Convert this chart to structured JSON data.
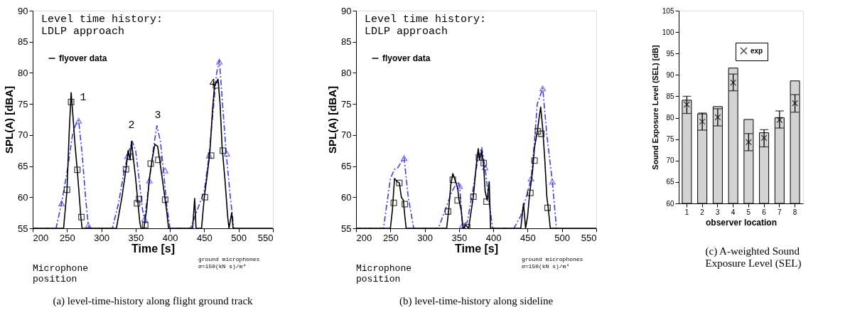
{
  "chart_data": [
    {
      "type": "line",
      "xlabel": "Time [s]",
      "ylabel": "SPL(A) [dBA]",
      "xlim": [
        200,
        550
      ],
      "xticks": [
        200,
        250,
        300,
        350,
        400,
        450,
        500,
        550
      ],
      "ylim": [
        55,
        90
      ],
      "yticks": [
        55,
        60,
        65,
        70,
        75,
        80,
        85,
        90
      ],
      "grid": false,
      "legend": "top left",
      "annotations": [
        "Level time history:\nLDLP approach",
        "Microphone\nposition",
        "ground microphones\nσ=150(kN s)/m⁴",
        "(a) level-time-history along flight ground track",
        "1",
        "2",
        "3",
        "4"
      ],
      "series": [
        {
          "color": "#3c3cff",
          "line_style": "dashed",
          "marker": "none",
          "x": [
            200,
            234,
            242,
            250,
            258,
            262,
            267,
            272,
            277,
            281,
            283,
            316,
            325,
            333,
            339,
            345,
            350,
            355,
            360,
            363,
            370,
            376,
            381,
            386,
            390,
            395,
            400,
            430,
            440,
            450,
            457,
            463,
            468,
            472,
            476,
            482,
            488,
            493
          ],
          "values": [
            55,
            55,
            59,
            64,
            70,
            71.5,
            72.3,
            67,
            60,
            55.5,
            55,
            55,
            59,
            64,
            67,
            69,
            67.5,
            63,
            58,
            56.5,
            62.7,
            68,
            71.5,
            69,
            65,
            59,
            55,
            55,
            58,
            61,
            66.7,
            74,
            80,
            82,
            76,
            67,
            60,
            55
          ]
        },
        {
          "type": "scatter",
          "color": "#3c3cff",
          "marker": "triangle",
          "x": [
            242,
            267,
            281,
            338,
            363,
            370,
            393,
            457,
            472,
            483
          ],
          "values": [
            59,
            72.3,
            55.5,
            66.6,
            56.5,
            62.7,
            64.3,
            66.7,
            81.8,
            67
          ]
        },
        {
          "name": "flyover data",
          "color": "#000000",
          "line_style": "solid",
          "marker": "none",
          "x": [
            200,
            245,
            250,
            253,
            256,
            258,
            262,
            265,
            268,
            270,
            272,
            322,
            330,
            336,
            339,
            342,
            344,
            347,
            350,
            353,
            356,
            358,
            362,
            366,
            370,
            374,
            378,
            382,
            385,
            390,
            395,
            398,
            433,
            436,
            438,
            446,
            450,
            453,
            458,
            462,
            465,
            468,
            470,
            473,
            476,
            480,
            484,
            486,
            490,
            492,
            550
          ],
          "values": [
            55,
            55,
            61.2,
            70,
            76.8,
            74,
            68,
            64.3,
            60,
            57,
            55,
            55,
            60,
            64.5,
            67.5,
            66,
            69,
            66,
            63,
            59.5,
            56,
            55,
            55,
            58,
            63,
            66,
            68.5,
            68.2,
            66,
            62,
            58,
            55,
            55,
            59.8,
            55,
            55,
            60,
            62.5,
            67,
            74,
            78,
            78.5,
            79,
            75,
            68,
            63,
            57,
            55,
            57.5,
            55,
            55
          ]
        },
        {
          "type": "scatter",
          "color": "#000000",
          "marker": "square",
          "x": [
            250,
            256,
            265,
            271,
            336,
            342,
            352,
            355,
            364,
            372,
            383,
            393,
            451,
            460,
            467,
            477
          ],
          "values": [
            61.2,
            75.3,
            64.4,
            56.8,
            64.5,
            66.5,
            59,
            59.7,
            55.5,
            65.4,
            66,
            59.6,
            60,
            66.7,
            78,
            67.5
          ]
        }
      ]
    },
    {
      "type": "line",
      "xlabel": "Time [s]",
      "ylabel": "SPL(A) [dBA]",
      "xlim": [
        200,
        550
      ],
      "xticks": [
        200,
        250,
        300,
        350,
        400,
        450,
        500,
        550
      ],
      "ylim": [
        55,
        90
      ],
      "yticks": [
        55,
        60,
        65,
        70,
        75,
        80,
        85,
        90
      ],
      "grid": false,
      "legend": "top left",
      "annotations": [
        "Level time history:\nLDLP approach",
        "Microphone\nposition",
        "ground microphones\nσ=150(kN s)/m⁴",
        "(b) level-time-history along sideline"
      ],
      "series": [
        {
          "color": "#3c3cff",
          "line_style": "dashed",
          "marker": "none",
          "x": [
            200,
            240,
            250,
            256,
            260,
            265,
            270,
            276,
            284,
            320,
            330,
            340,
            348,
            351,
            355,
            362,
            370,
            378,
            383,
            388,
            393,
            399,
            430,
            440,
            448,
            455,
            460,
            464,
            472,
            478,
            486,
            492
          ],
          "values": [
            55,
            55,
            63,
            64.5,
            64.6,
            65.5,
            66.3,
            60,
            55,
            55,
            58,
            61,
            62.5,
            61.8,
            55.5,
            56,
            61,
            66.5,
            68,
            64.8,
            60,
            55,
            55,
            57,
            60,
            63,
            69,
            75,
            77.5,
            70,
            62.5,
            55
          ]
        },
        {
          "type": "scatter",
          "color": "#3c3cff",
          "marker": "triangle",
          "x": [
            270,
            351,
            355,
            388,
            455,
            472,
            486
          ],
          "values": [
            66.3,
            61.8,
            55.5,
            64.8,
            63,
            77.5,
            62.5
          ]
        },
        {
          "name": "flyover data",
          "color": "#000000",
          "line_style": "solid",
          "marker": "none",
          "x": [
            200,
            250,
            253,
            256,
            260,
            263,
            266,
            269,
            271,
            273,
            332,
            335,
            338,
            341,
            345,
            348,
            350,
            353,
            356,
            360,
            364,
            368,
            371,
            375,
            378,
            380,
            383,
            386,
            388,
            391,
            394,
            396,
            440,
            444,
            447,
            450,
            453,
            457,
            460,
            464,
            467,
            469,
            472,
            475,
            478,
            480,
            483,
            550
          ],
          "values": [
            55,
            55,
            58,
            63,
            62.5,
            62.3,
            60,
            59.5,
            57,
            55,
            55,
            58,
            62,
            63.8,
            62.5,
            61.5,
            59.5,
            58,
            55,
            55.5,
            55,
            58,
            60.2,
            65,
            67.8,
            66,
            67.5,
            65,
            61,
            59.5,
            62.5,
            55,
            55,
            59,
            55,
            57,
            60.7,
            64,
            68,
            70.5,
            73,
            74.5,
            71,
            66,
            60,
            58.3,
            55,
            55
          ]
        },
        {
          "type": "scatter",
          "color": "#000000",
          "marker": "square",
          "x": [
            255,
            263,
            271,
            334,
            341,
            348,
            362,
            371,
            379,
            386,
            390,
            454,
            460,
            465,
            470,
            479
          ],
          "values": [
            59.1,
            62.3,
            58.9,
            57.7,
            62.8,
            59.5,
            55.2,
            60.1,
            66.4,
            65.5,
            59.3,
            60.7,
            65.9,
            70.6,
            70.2,
            58.3
          ]
        }
      ]
    },
    {
      "type": "bar",
      "xlabel": "observer location",
      "ylabel": "Sound Exposure Level (SEL) [dB]",
      "categories": [
        "1",
        "2",
        "3",
        "4",
        "5",
        "6",
        "7",
        "8"
      ],
      "ylim": [
        60,
        105
      ],
      "yticks": [
        60,
        65,
        70,
        75,
        80,
        85,
        90,
        95,
        100,
        105
      ],
      "grid": false,
      "legend": "top right",
      "annotations": [
        "(c) A-weighted Sound Exposure Level (SEL)"
      ],
      "series": [
        {
          "type": "bar",
          "color": "#d3d3d3",
          "values": [
            84.1,
            80.9,
            82.6,
            91.6,
            79.6,
            76.5,
            80.0,
            88.6
          ]
        },
        {
          "type": "scatter",
          "name": "exp",
          "color": "#000000",
          "marker": "cross",
          "values": [
            83.1,
            79.1,
            80.1,
            88.2,
            74.3,
            75.3,
            79.5,
            83.4
          ],
          "errors": [
            [
              81,
              85
            ],
            [
              77.1,
              81.1
            ],
            [
              78.1,
              82.1
            ],
            [
              86.3,
              90.2
            ],
            [
              72.3,
              76.3
            ],
            [
              73.2,
              77.2
            ],
            [
              77.6,
              81.6
            ],
            [
              81.3,
              85.4
            ]
          ]
        }
      ]
    }
  ]
}
